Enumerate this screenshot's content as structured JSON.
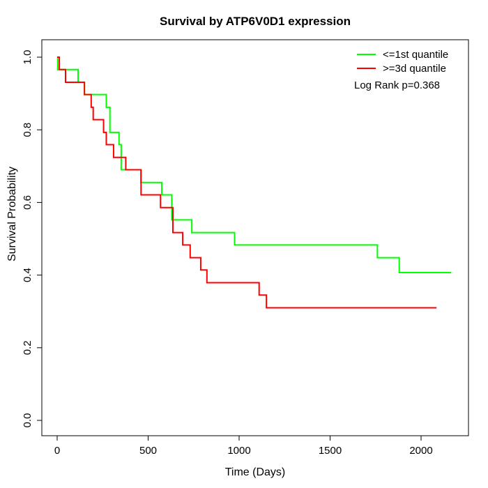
{
  "title": "Survival by ATP6V0D1 expression",
  "axes": {
    "xlabel": "Time (Days)",
    "ylabel": "Survival Probability"
  },
  "annotation": "Log Rank p=0.368",
  "chart_data": {
    "type": "line",
    "subtype": "kaplan_meier_step",
    "title": "Survival by ATP6V0D1 expression",
    "xlabel": "Time (Days)",
    "ylabel": "Survival Probability",
    "xlim": [
      0,
      2200
    ],
    "ylim": [
      0.0,
      1.0
    ],
    "x_ticks": [
      "0",
      "500",
      "1000",
      "1500",
      "2000"
    ],
    "x_tick_values": [
      0,
      500,
      1000,
      1500,
      2000
    ],
    "y_ticks": [
      "0.0",
      "0.2",
      "0.4",
      "0.6",
      "0.8",
      "1.0"
    ],
    "y_tick_values": [
      0,
      0.2,
      0.4,
      0.6,
      0.8,
      1.0
    ],
    "grid": false,
    "legend_position": "top-right",
    "annotation": "Log Rank p=0.368",
    "series": [
      {
        "name": "<=1st quantile",
        "color": "#00ff00",
        "start": [
          0,
          1.0
        ],
        "steps": [
          [
            3,
            0.966
          ],
          [
            115,
            0.931
          ],
          [
            150,
            0.897
          ],
          [
            270,
            0.862
          ],
          [
            290,
            0.793
          ],
          [
            340,
            0.759
          ],
          [
            352,
            0.69
          ],
          [
            460,
            0.655
          ],
          [
            575,
            0.621
          ],
          [
            630,
            0.552
          ],
          [
            740,
            0.517
          ],
          [
            975,
            0.483
          ],
          [
            1760,
            0.448
          ],
          [
            1880,
            0.407
          ]
        ],
        "end_time": 2165
      },
      {
        "name": ">=3d quantile",
        "color": "#ff0000",
        "start": [
          0,
          1.0
        ],
        "steps": [
          [
            12,
            0.966
          ],
          [
            46,
            0.931
          ],
          [
            150,
            0.897
          ],
          [
            187,
            0.862
          ],
          [
            198,
            0.828
          ],
          [
            255,
            0.793
          ],
          [
            270,
            0.759
          ],
          [
            310,
            0.724
          ],
          [
            377,
            0.69
          ],
          [
            461,
            0.621
          ],
          [
            568,
            0.586
          ],
          [
            636,
            0.517
          ],
          [
            690,
            0.483
          ],
          [
            731,
            0.448
          ],
          [
            789,
            0.414
          ],
          [
            823,
            0.379
          ],
          [
            1110,
            0.345
          ],
          [
            1150,
            0.31
          ]
        ],
        "end_time": 2085
      }
    ]
  }
}
